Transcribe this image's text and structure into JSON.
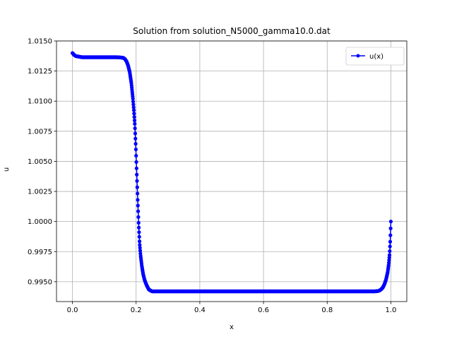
{
  "chart_data": {
    "type": "line",
    "title": "Solution from solution_N5000_gamma10.0.dat",
    "xlabel": "x",
    "ylabel": "u",
    "xlim": [
      -0.05,
      1.05
    ],
    "ylim": [
      0.99335,
      1.015
    ],
    "grid": true,
    "legend_position": "top-right",
    "x_ticks": [
      "0.0",
      "0.2",
      "0.4",
      "0.6",
      "0.8",
      "1.0"
    ],
    "y_ticks": [
      "0.9950",
      "0.9975",
      "1.0000",
      "1.0025",
      "1.0050",
      "1.0075",
      "1.0100",
      "1.0125",
      "1.0150"
    ],
    "series": [
      {
        "name": "u(x)",
        "color": "#0000ff",
        "marker": "circle",
        "x": [
          0.0,
          0.005,
          0.01,
          0.02,
          0.03,
          0.05,
          0.08,
          0.1,
          0.12,
          0.14,
          0.15,
          0.16,
          0.165,
          0.17,
          0.175,
          0.18,
          0.185,
          0.19,
          0.193,
          0.196,
          0.199,
          0.202,
          0.205,
          0.208,
          0.211,
          0.214,
          0.218,
          0.222,
          0.226,
          0.23,
          0.235,
          0.24,
          0.25,
          0.26,
          0.3,
          0.4,
          0.5,
          0.6,
          0.7,
          0.8,
          0.9,
          0.95,
          0.96,
          0.965,
          0.97,
          0.975,
          0.98,
          0.985,
          0.99,
          0.993,
          0.996,
          0.998,
          1.0
        ],
        "y": [
          1.014,
          1.01385,
          1.01375,
          1.0137,
          1.01365,
          1.01365,
          1.01365,
          1.01365,
          1.01365,
          1.01365,
          1.01363,
          1.0136,
          1.0135,
          1.0133,
          1.01295,
          1.0124,
          1.0115,
          1.0102,
          1.0092,
          1.008,
          1.0062,
          1.004,
          1.0018,
          0.9998,
          0.9982,
          0.9972,
          0.9963,
          0.99565,
          0.9952,
          0.9949,
          0.9946,
          0.99435,
          0.9942,
          0.9942,
          0.9942,
          0.9942,
          0.9942,
          0.9942,
          0.9942,
          0.9942,
          0.9942,
          0.9942,
          0.99423,
          0.99428,
          0.99438,
          0.99453,
          0.9948,
          0.9952,
          0.9958,
          0.9964,
          0.9973,
          0.9984,
          1.0
        ]
      }
    ]
  }
}
